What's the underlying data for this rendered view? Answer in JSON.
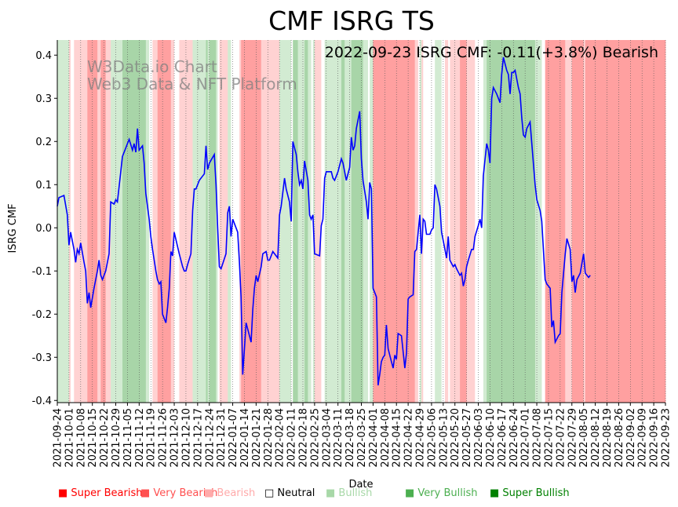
{
  "title": "CMF ISRG TS",
  "annotation": "2022-09-23 ISRG CMF: -0.11(+3.8%) Bearish",
  "watermark": [
    "W3Data.io Chart",
    "Web3 Data & NFT Platform"
  ],
  "legend": [
    {
      "label": "■ Super Bearish",
      "color": "#ff0000"
    },
    {
      "label": "■ Very Bearish",
      "color": "#ff5050"
    },
    {
      "label": "■ Bearish",
      "color": "#ffaaaa"
    },
    {
      "label": "□ Neutral",
      "color": "#000000"
    },
    {
      "label": "■ Bullish",
      "color": "#a8d8a8"
    },
    {
      "label": "■ Very Bullish",
      "color": "#4caf50"
    },
    {
      "label": "■ Super Bullish",
      "color": "#008000"
    }
  ],
  "chart_data": {
    "type": "line",
    "title": "CMF ISRG TS",
    "xlabel": "Date",
    "ylabel": "ISRG CMF",
    "xlim": [
      "2021-09-24",
      "2022-09-23"
    ],
    "ylim": [
      -0.405,
      0.435
    ],
    "yticks": [
      -0.4,
      -0.3,
      -0.2,
      -0.1,
      0.0,
      0.1,
      0.2,
      0.3,
      0.4
    ],
    "xticks": [
      "2021-09-24",
      "2021-10-01",
      "2021-10-08",
      "2021-10-15",
      "2021-10-22",
      "2021-10-29",
      "2021-11-05",
      "2021-11-12",
      "2021-11-19",
      "2021-11-26",
      "2021-12-03",
      "2021-12-10",
      "2021-12-17",
      "2021-12-24",
      "2021-12-31",
      "2022-01-07",
      "2022-01-14",
      "2022-01-21",
      "2022-01-28",
      "2022-02-04",
      "2022-02-11",
      "2022-02-18",
      "2022-02-25",
      "2022-03-04",
      "2022-03-11",
      "2022-03-18",
      "2022-03-25",
      "2022-04-01",
      "2022-04-08",
      "2022-04-15",
      "2022-04-22",
      "2022-04-29",
      "2022-05-06",
      "2022-05-13",
      "2022-05-20",
      "2022-05-27",
      "2022-06-03",
      "2022-06-10",
      "2022-06-17",
      "2022-06-24",
      "2022-07-01",
      "2022-07-08",
      "2022-07-15",
      "2022-07-22",
      "2022-07-29",
      "2022-08-05",
      "2022-08-12",
      "2022-08-19",
      "2022-08-26",
      "2022-09-02",
      "2022-09-09",
      "2022-09-16",
      "2022-09-23"
    ],
    "series": [
      {
        "color": "#0000ff",
        "points": [
          [
            "2021-09-24",
            0.05
          ],
          [
            "2021-09-25",
            0.07
          ],
          [
            "2021-09-28",
            0.075
          ],
          [
            "2021-09-30",
            0.03
          ],
          [
            "2021-10-01",
            -0.04
          ],
          [
            "2021-10-02",
            -0.01
          ],
          [
            "2021-10-04",
            -0.05
          ],
          [
            "2021-10-05",
            -0.08
          ],
          [
            "2021-10-06",
            -0.05
          ],
          [
            "2021-10-07",
            -0.06
          ],
          [
            "2021-10-08",
            -0.035
          ],
          [
            "2021-10-10",
            -0.08
          ],
          [
            "2021-10-11",
            -0.1
          ],
          [
            "2021-10-12",
            -0.175
          ],
          [
            "2021-10-13",
            -0.15
          ],
          [
            "2021-10-14",
            -0.185
          ],
          [
            "2021-10-16",
            -0.14
          ],
          [
            "2021-10-18",
            -0.1
          ],
          [
            "2021-10-19",
            -0.075
          ],
          [
            "2021-10-20",
            -0.11
          ],
          [
            "2021-10-21",
            -0.12
          ],
          [
            "2021-10-23",
            -0.1
          ],
          [
            "2021-10-25",
            -0.06
          ],
          [
            "2021-10-26",
            0.06
          ],
          [
            "2021-10-28",
            0.055
          ],
          [
            "2021-10-29",
            0.065
          ],
          [
            "2021-10-30",
            0.06
          ],
          [
            "2021-11-01",
            0.13
          ],
          [
            "2021-11-02",
            0.165
          ],
          [
            "2021-11-04",
            0.185
          ],
          [
            "2021-11-05",
            0.195
          ],
          [
            "2021-11-06",
            0.205
          ],
          [
            "2021-11-08",
            0.18
          ],
          [
            "2021-11-09",
            0.195
          ],
          [
            "2021-11-10",
            0.175
          ],
          [
            "2021-11-11",
            0.23
          ],
          [
            "2021-11-12",
            0.18
          ],
          [
            "2021-11-14",
            0.19
          ],
          [
            "2021-11-15",
            0.15
          ],
          [
            "2021-11-16",
            0.08
          ],
          [
            "2021-11-18",
            0.02
          ],
          [
            "2021-11-19",
            -0.02
          ],
          [
            "2021-11-20",
            -0.05
          ],
          [
            "2021-11-22",
            -0.1
          ],
          [
            "2021-11-23",
            -0.12
          ],
          [
            "2021-11-24",
            -0.13
          ],
          [
            "2021-11-25",
            -0.125
          ],
          [
            "2021-11-26",
            -0.2
          ],
          [
            "2021-11-28",
            -0.22
          ],
          [
            "2021-11-29",
            -0.185
          ],
          [
            "2021-11-30",
            -0.14
          ],
          [
            "2021-12-01",
            -0.055
          ],
          [
            "2021-12-02",
            -0.065
          ],
          [
            "2021-12-03",
            -0.01
          ],
          [
            "2021-12-06",
            -0.06
          ],
          [
            "2021-12-08",
            -0.09
          ],
          [
            "2021-12-09",
            -0.1
          ],
          [
            "2021-12-10",
            -0.1
          ],
          [
            "2021-12-11",
            -0.085
          ],
          [
            "2021-12-13",
            -0.06
          ],
          [
            "2021-12-14",
            0.04
          ],
          [
            "2021-12-15",
            0.09
          ],
          [
            "2021-12-16",
            0.09
          ],
          [
            "2021-12-18",
            0.11
          ],
          [
            "2021-12-20",
            0.12
          ],
          [
            "2021-12-21",
            0.125
          ],
          [
            "2021-12-22",
            0.19
          ],
          [
            "2021-12-23",
            0.135
          ],
          [
            "2021-12-24",
            0.15
          ],
          [
            "2021-12-27",
            0.17
          ],
          [
            "2021-12-28",
            0.1
          ],
          [
            "2021-12-29",
            0.0
          ],
          [
            "2021-12-30",
            -0.09
          ],
          [
            "2021-12-31",
            -0.095
          ],
          [
            "2022-01-03",
            -0.06
          ],
          [
            "2022-01-04",
            0.035
          ],
          [
            "2022-01-05",
            0.05
          ],
          [
            "2022-01-06",
            -0.02
          ],
          [
            "2022-01-07",
            0.02
          ],
          [
            "2022-01-10",
            -0.01
          ],
          [
            "2022-01-11",
            -0.08
          ],
          [
            "2022-01-12",
            -0.16
          ],
          [
            "2022-01-13",
            -0.34
          ],
          [
            "2022-01-14",
            -0.28
          ],
          [
            "2022-01-15",
            -0.22
          ],
          [
            "2022-01-18",
            -0.265
          ],
          [
            "2022-01-19",
            -0.19
          ],
          [
            "2022-01-20",
            -0.14
          ],
          [
            "2022-01-21",
            -0.11
          ],
          [
            "2022-01-22",
            -0.125
          ],
          [
            "2022-01-24",
            -0.09
          ],
          [
            "2022-01-25",
            -0.06
          ],
          [
            "2022-01-27",
            -0.055
          ],
          [
            "2022-01-28",
            -0.075
          ],
          [
            "2022-01-29",
            -0.075
          ],
          [
            "2022-01-31",
            -0.055
          ],
          [
            "2022-02-02",
            -0.065
          ],
          [
            "2022-02-03",
            -0.07
          ],
          [
            "2022-02-04",
            0.03
          ],
          [
            "2022-02-05",
            0.05
          ],
          [
            "2022-02-07",
            0.115
          ],
          [
            "2022-02-08",
            0.09
          ],
          [
            "2022-02-10",
            0.06
          ],
          [
            "2022-02-11",
            0.015
          ],
          [
            "2022-02-12",
            0.2
          ],
          [
            "2022-02-14",
            0.17
          ],
          [
            "2022-02-15",
            0.13
          ],
          [
            "2022-02-16",
            0.1
          ],
          [
            "2022-02-17",
            0.11
          ],
          [
            "2022-02-18",
            0.09
          ],
          [
            "2022-02-19",
            0.155
          ],
          [
            "2022-02-21",
            0.11
          ],
          [
            "2022-02-22",
            0.03
          ],
          [
            "2022-02-23",
            0.02
          ],
          [
            "2022-02-24",
            0.03
          ],
          [
            "2022-02-25",
            -0.06
          ],
          [
            "2022-02-28",
            -0.065
          ],
          [
            "2022-03-01",
            0.005
          ],
          [
            "2022-03-02",
            0.02
          ],
          [
            "2022-03-03",
            0.115
          ],
          [
            "2022-03-04",
            0.13
          ],
          [
            "2022-03-07",
            0.13
          ],
          [
            "2022-03-08",
            0.115
          ],
          [
            "2022-03-09",
            0.11
          ],
          [
            "2022-03-10",
            0.12
          ],
          [
            "2022-03-11",
            0.13
          ],
          [
            "2022-03-13",
            0.16
          ],
          [
            "2022-03-14",
            0.15
          ],
          [
            "2022-03-15",
            0.13
          ],
          [
            "2022-03-16",
            0.11
          ],
          [
            "2022-03-18",
            0.14
          ],
          [
            "2022-03-19",
            0.21
          ],
          [
            "2022-03-20",
            0.18
          ],
          [
            "2022-03-21",
            0.19
          ],
          [
            "2022-03-22",
            0.23
          ],
          [
            "2022-03-24",
            0.27
          ],
          [
            "2022-03-25",
            0.16
          ],
          [
            "2022-03-26",
            0.11
          ],
          [
            "2022-03-28",
            0.06
          ],
          [
            "2022-03-29",
            0.02
          ],
          [
            "2022-03-30",
            0.105
          ],
          [
            "2022-03-31",
            0.09
          ],
          [
            "2022-04-01",
            -0.14
          ],
          [
            "2022-04-03",
            -0.16
          ],
          [
            "2022-04-04",
            -0.365
          ],
          [
            "2022-04-05",
            -0.34
          ],
          [
            "2022-04-06",
            -0.31
          ],
          [
            "2022-04-07",
            -0.3
          ],
          [
            "2022-04-08",
            -0.295
          ],
          [
            "2022-04-09",
            -0.225
          ],
          [
            "2022-04-10",
            -0.28
          ],
          [
            "2022-04-12",
            -0.31
          ],
          [
            "2022-04-13",
            -0.325
          ],
          [
            "2022-04-14",
            -0.295
          ],
          [
            "2022-04-15",
            -0.305
          ],
          [
            "2022-04-16",
            -0.245
          ],
          [
            "2022-04-18",
            -0.25
          ],
          [
            "2022-04-20",
            -0.325
          ],
          [
            "2022-04-21",
            -0.29
          ],
          [
            "2022-04-22",
            -0.165
          ],
          [
            "2022-04-23",
            -0.16
          ],
          [
            "2022-04-25",
            -0.155
          ],
          [
            "2022-04-26",
            -0.055
          ],
          [
            "2022-04-27",
            -0.05
          ],
          [
            "2022-04-28",
            -0.01
          ],
          [
            "2022-04-29",
            0.03
          ],
          [
            "2022-04-30",
            -0.06
          ],
          [
            "2022-05-01",
            0.02
          ],
          [
            "2022-05-02",
            0.015
          ],
          [
            "2022-05-03",
            -0.015
          ],
          [
            "2022-05-05",
            -0.015
          ],
          [
            "2022-05-06",
            -0.005
          ],
          [
            "2022-05-07",
            0.0
          ],
          [
            "2022-05-08",
            0.1
          ],
          [
            "2022-05-09",
            0.09
          ],
          [
            "2022-05-11",
            0.05
          ],
          [
            "2022-05-12",
            -0.01
          ],
          [
            "2022-05-14",
            -0.05
          ],
          [
            "2022-05-15",
            -0.07
          ],
          [
            "2022-05-16",
            -0.02
          ],
          [
            "2022-05-17",
            -0.075
          ],
          [
            "2022-05-19",
            -0.09
          ],
          [
            "2022-05-20",
            -0.085
          ],
          [
            "2022-05-21",
            -0.095
          ],
          [
            "2022-05-23",
            -0.11
          ],
          [
            "2022-05-24",
            -0.105
          ],
          [
            "2022-05-25",
            -0.135
          ],
          [
            "2022-05-26",
            -0.12
          ],
          [
            "2022-05-27",
            -0.09
          ],
          [
            "2022-05-28",
            -0.075
          ],
          [
            "2022-05-30",
            -0.05
          ],
          [
            "2022-05-31",
            -0.05
          ],
          [
            "2022-06-01",
            -0.02
          ],
          [
            "2022-06-03",
            0.005
          ],
          [
            "2022-06-04",
            0.02
          ],
          [
            "2022-06-05",
            0.0
          ],
          [
            "2022-06-06",
            0.12
          ],
          [
            "2022-06-08",
            0.195
          ],
          [
            "2022-06-09",
            0.18
          ],
          [
            "2022-06-10",
            0.15
          ],
          [
            "2022-06-11",
            0.3
          ],
          [
            "2022-06-12",
            0.325
          ],
          [
            "2022-06-14",
            0.31
          ],
          [
            "2022-06-15",
            0.3
          ],
          [
            "2022-06-16",
            0.29
          ],
          [
            "2022-06-17",
            0.355
          ],
          [
            "2022-06-18",
            0.395
          ],
          [
            "2022-06-20",
            0.365
          ],
          [
            "2022-06-21",
            0.355
          ],
          [
            "2022-06-22",
            0.31
          ],
          [
            "2022-06-23",
            0.36
          ],
          [
            "2022-06-24",
            0.36
          ],
          [
            "2022-06-25",
            0.365
          ],
          [
            "2022-06-27",
            0.325
          ],
          [
            "2022-06-28",
            0.31
          ],
          [
            "2022-06-29",
            0.255
          ],
          [
            "2022-06-30",
            0.215
          ],
          [
            "2022-07-01",
            0.21
          ],
          [
            "2022-07-02",
            0.23
          ],
          [
            "2022-07-04",
            0.245
          ],
          [
            "2022-07-05",
            0.195
          ],
          [
            "2022-07-07",
            0.1
          ],
          [
            "2022-07-08",
            0.065
          ],
          [
            "2022-07-10",
            0.04
          ],
          [
            "2022-07-11",
            0.015
          ],
          [
            "2022-07-13",
            -0.12
          ],
          [
            "2022-07-14",
            -0.13
          ],
          [
            "2022-07-16",
            -0.14
          ],
          [
            "2022-07-17",
            -0.23
          ],
          [
            "2022-07-18",
            -0.215
          ],
          [
            "2022-07-19",
            -0.265
          ],
          [
            "2022-07-21",
            -0.25
          ],
          [
            "2022-07-22",
            -0.245
          ],
          [
            "2022-07-23",
            -0.15
          ],
          [
            "2022-07-25",
            -0.06
          ],
          [
            "2022-07-26",
            -0.025
          ],
          [
            "2022-07-28",
            -0.05
          ],
          [
            "2022-07-29",
            -0.125
          ],
          [
            "2022-07-30",
            -0.11
          ],
          [
            "2022-07-31",
            -0.15
          ],
          [
            "2022-08-01",
            -0.12
          ],
          [
            "2022-08-03",
            -0.105
          ],
          [
            "2022-08-05",
            -0.06
          ],
          [
            "2022-08-06",
            -0.105
          ],
          [
            "2022-08-08",
            -0.115
          ],
          [
            "2022-08-09",
            -0.11
          ]
        ]
      }
    ]
  }
}
